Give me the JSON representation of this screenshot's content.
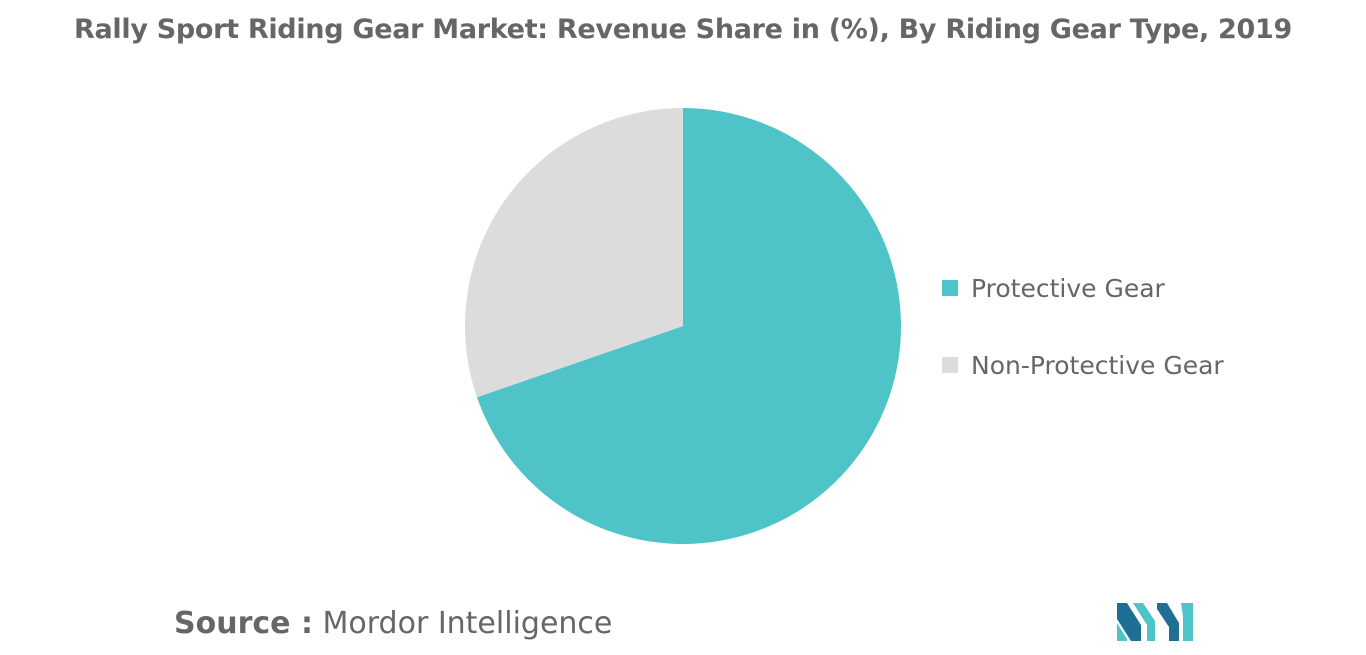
{
  "chart_data": {
    "type": "pie",
    "title": "Rally Sport Riding Gear Market: Revenue Share in (%), By Riding Gear Type, 2019",
    "slices": [
      {
        "label": "Protective Gear",
        "value": 69.7,
        "color": "#4fc4c8"
      },
      {
        "label": "Non-Protective Gear",
        "value": 30.3,
        "color": "#dcdcdc"
      }
    ],
    "legend_position": "right"
  },
  "source": {
    "key": "Source :",
    "value": "Mordor Intelligence"
  },
  "colors": {
    "text": "#666666",
    "logo_dark": "#1f6f94",
    "logo_light": "#4fc4c8"
  },
  "logo_icon": "mordor-intelligence-logo-icon"
}
